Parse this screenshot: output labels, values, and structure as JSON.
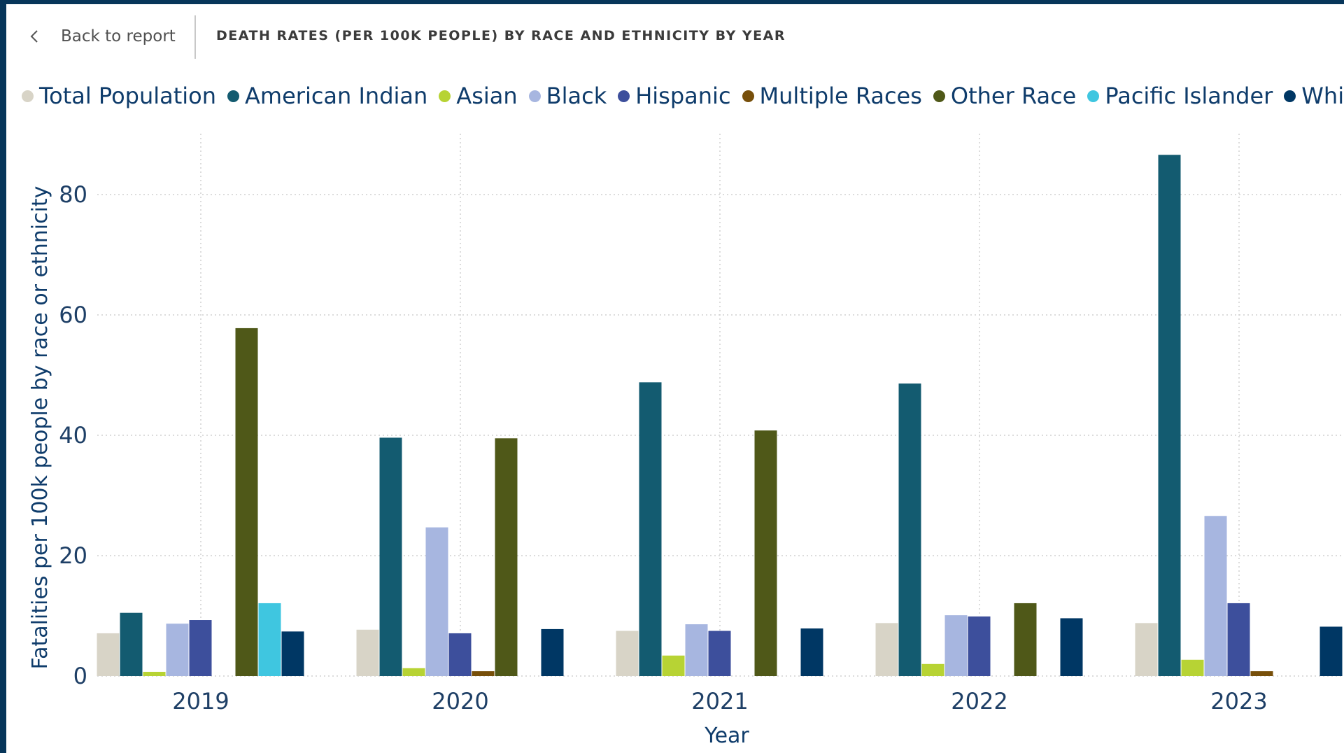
{
  "header": {
    "back_label": "Back to report",
    "title": "DEATH RATES (PER 100K PEOPLE) BY RACE AND ETHNICITY BY YEAR"
  },
  "colors": {
    "frame": "#07365a",
    "grid": "#d0d0d0"
  },
  "chart_data": {
    "type": "bar",
    "title": "DEATH RATES (PER 100K PEOPLE) BY RACE AND ETHNICITY BY YEAR",
    "xlabel": "Year",
    "ylabel": "Fatalities per 100k people by race or ethnicity",
    "categories": [
      "2019",
      "2020",
      "2021",
      "2022",
      "2023"
    ],
    "ylim": [
      0,
      87
    ],
    "yticks": [
      0,
      20,
      40,
      60,
      80
    ],
    "grid": true,
    "legend_position": "top-left",
    "series": [
      {
        "name": "Total Population",
        "color": "#d8d4c7",
        "values": [
          7.1,
          7.7,
          7.5,
          8.8,
          8.8
        ]
      },
      {
        "name": "American Indian",
        "color": "#135b70",
        "values": [
          10.5,
          39.6,
          48.8,
          48.6,
          86.6
        ]
      },
      {
        "name": "Asian",
        "color": "#b7d334",
        "values": [
          0.7,
          1.3,
          3.4,
          2.0,
          2.7
        ]
      },
      {
        "name": "Black",
        "color": "#a7b6e0",
        "values": [
          8.7,
          24.7,
          8.6,
          10.1,
          26.6
        ]
      },
      {
        "name": "Hispanic",
        "color": "#3d4f9c",
        "values": [
          9.3,
          7.1,
          7.5,
          9.9,
          12.1
        ]
      },
      {
        "name": "Multiple Races",
        "color": "#774f0a",
        "values": [
          0,
          0.8,
          0,
          0,
          0.8
        ]
      },
      {
        "name": "Other Race",
        "color": "#4f5818",
        "values": [
          57.8,
          39.5,
          40.8,
          12.1,
          0
        ]
      },
      {
        "name": "Pacific Islander",
        "color": "#3fc6e0",
        "values": [
          12.1,
          0,
          0,
          0,
          0
        ]
      },
      {
        "name": "White",
        "color": "#003764",
        "values": [
          7.4,
          7.8,
          7.9,
          9.6,
          8.2
        ]
      }
    ]
  }
}
